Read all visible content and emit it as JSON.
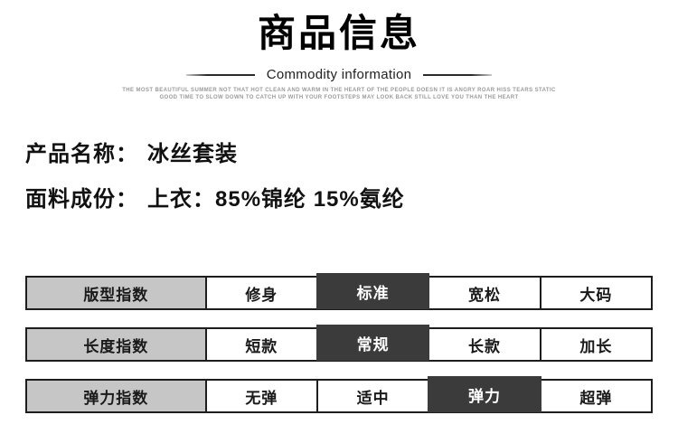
{
  "header": {
    "title": "商品信息",
    "subtitle": "Commodity information",
    "tagline_line1": "THE MOST BEAUTIFUL SUMMER NOT THAT HOT CLEAN AND WARM IN THE HEART OF THE PEOPLE DOESN IT IS ANGRY ROAR HISS TEARS STATIC",
    "tagline_line2": "GOOD TIME TO SLOW DOWN TO CATCH UP WITH YOUR FOOTSTEPS MAY LOOK BACK STILL LOVE YOU THAN THE HEART"
  },
  "product": {
    "name_label": "产品名称：",
    "name_value": "冰丝套装",
    "fabric_label": "面料成份：",
    "fabric_value": "上衣：85%锦纶 15%氨纶"
  },
  "index_table": {
    "rows": [
      {
        "header": "版型指数",
        "options": [
          "修身",
          "标准",
          "宽松",
          "大码"
        ],
        "selected": 1
      },
      {
        "header": "长度指数",
        "options": [
          "短款",
          "常规",
          "长款",
          "加长"
        ],
        "selected": 1
      },
      {
        "header": "弹力指数",
        "options": [
          "无弹",
          "适中",
          "弹力",
          "超弹"
        ],
        "selected": 2
      }
    ]
  },
  "colors": {
    "header_cell_bg": "#c6c6c6",
    "selected_cell_bg": "#3b3b3b",
    "selected_cell_text": "#ffffff",
    "table_border": "#1d1d1d",
    "title_text": "#000000",
    "tagline_text": "#9b9b9b"
  }
}
